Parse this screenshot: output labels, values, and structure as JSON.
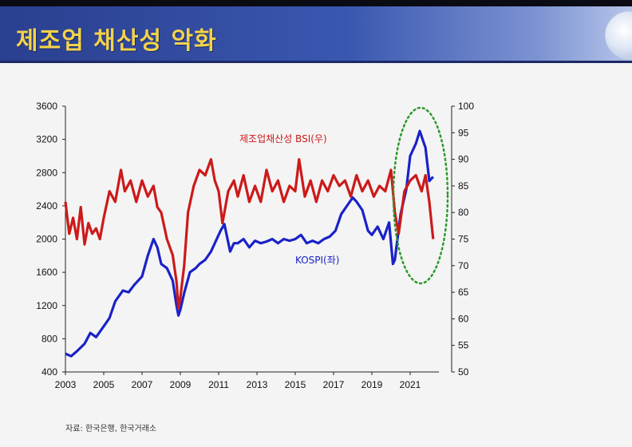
{
  "page": {
    "title": "제조업 채산성 악화",
    "source": "자료: 한국은행, 한국거래소"
  },
  "colors": {
    "kospi": "#1a22c8",
    "bsi": "#cc1a1a",
    "highlight": "#2a9a2a"
  },
  "chart_data": {
    "type": "line",
    "title": "",
    "x_ticks": [
      "2003",
      "2005",
      "2007",
      "2009",
      "2011",
      "2013",
      "2015",
      "2017",
      "2019",
      "2021"
    ],
    "y_left": {
      "min": 400,
      "max": 3600,
      "ticks": [
        400,
        800,
        1200,
        1600,
        2000,
        2400,
        2800,
        3200,
        3600
      ]
    },
    "y_right": {
      "min": 50,
      "max": 100,
      "ticks": [
        50,
        55,
        60,
        65,
        70,
        75,
        80,
        85,
        90,
        95,
        100
      ]
    },
    "series": [
      {
        "name": "KOSPI(좌)",
        "axis": "left",
        "x": [
          2003.0,
          2003.3,
          2003.6,
          2004.0,
          2004.3,
          2004.6,
          2005.0,
          2005.3,
          2005.6,
          2006.0,
          2006.3,
          2006.6,
          2007.0,
          2007.3,
          2007.6,
          2007.8,
          2008.0,
          2008.3,
          2008.6,
          2008.8,
          2008.9,
          2009.0,
          2009.2,
          2009.5,
          2009.8,
          2010.0,
          2010.3,
          2010.6,
          2010.9,
          2011.1,
          2011.3,
          2011.6,
          2011.8,
          2012.0,
          2012.3,
          2012.6,
          2012.9,
          2013.2,
          2013.5,
          2013.8,
          2014.1,
          2014.4,
          2014.7,
          2015.0,
          2015.3,
          2015.6,
          2015.9,
          2016.2,
          2016.5,
          2016.8,
          2017.1,
          2017.4,
          2017.7,
          2018.0,
          2018.2,
          2018.5,
          2018.8,
          2019.0,
          2019.3,
          2019.6,
          2019.9,
          2020.1,
          2020.2,
          2020.5,
          2020.8,
          2021.0,
          2021.3,
          2021.5,
          2021.8,
          2022.0,
          2022.2
        ],
        "y": [
          620,
          590,
          650,
          740,
          870,
          820,
          950,
          1050,
          1250,
          1380,
          1360,
          1450,
          1550,
          1800,
          2000,
          1900,
          1700,
          1650,
          1500,
          1200,
          1080,
          1150,
          1350,
          1600,
          1650,
          1700,
          1750,
          1850,
          2000,
          2100,
          2180,
          1850,
          1950,
          1950,
          2000,
          1900,
          1980,
          1950,
          1970,
          2000,
          1950,
          2000,
          1980,
          2000,
          2050,
          1950,
          1980,
          1950,
          2000,
          2030,
          2100,
          2300,
          2400,
          2500,
          2450,
          2350,
          2100,
          2050,
          2150,
          2000,
          2200,
          1700,
          1750,
          2300,
          2600,
          3000,
          3150,
          3300,
          3100,
          2700,
          2750
        ]
      },
      {
        "name": "제조업채산성 BSI(우)",
        "axis": "right",
        "x": [
          2003.0,
          2003.2,
          2003.4,
          2003.6,
          2003.8,
          2004.0,
          2004.2,
          2004.4,
          2004.6,
          2004.8,
          2005.0,
          2005.3,
          2005.6,
          2005.9,
          2006.1,
          2006.4,
          2006.7,
          2007.0,
          2007.3,
          2007.6,
          2007.8,
          2008.0,
          2008.3,
          2008.6,
          2008.8,
          2008.9,
          2009.0,
          2009.2,
          2009.4,
          2009.7,
          2010.0,
          2010.3,
          2010.6,
          2010.8,
          2011.0,
          2011.2,
          2011.5,
          2011.8,
          2012.0,
          2012.3,
          2012.6,
          2012.9,
          2013.2,
          2013.5,
          2013.8,
          2014.1,
          2014.4,
          2014.7,
          2015.0,
          2015.2,
          2015.5,
          2015.8,
          2016.1,
          2016.4,
          2016.7,
          2017.0,
          2017.3,
          2017.6,
          2017.9,
          2018.2,
          2018.5,
          2018.8,
          2019.1,
          2019.4,
          2019.7,
          2020.0,
          2020.2,
          2020.4,
          2020.7,
          2021.0,
          2021.3,
          2021.6,
          2021.8,
          2022.0,
          2022.2
        ],
        "y": [
          82,
          76,
          79,
          75,
          81,
          74,
          78,
          76,
          77,
          75,
          79,
          84,
          82,
          88,
          84,
          86,
          82,
          86,
          83,
          85,
          81,
          80,
          75,
          72,
          67,
          62,
          64,
          70,
          80,
          85,
          88,
          87,
          90,
          86,
          84,
          78,
          84,
          86,
          83,
          87,
          82,
          85,
          82,
          88,
          84,
          86,
          82,
          85,
          84,
          90,
          83,
          86,
          82,
          86,
          84,
          87,
          85,
          86,
          83,
          87,
          84,
          86,
          83,
          85,
          84,
          88,
          80,
          76,
          84,
          86,
          87,
          84,
          87,
          82,
          75
        ]
      }
    ],
    "annotations": [
      {
        "text": "제조업채산성 BSI(우)"
      },
      {
        "text": "KOSPI(좌)"
      }
    ]
  }
}
